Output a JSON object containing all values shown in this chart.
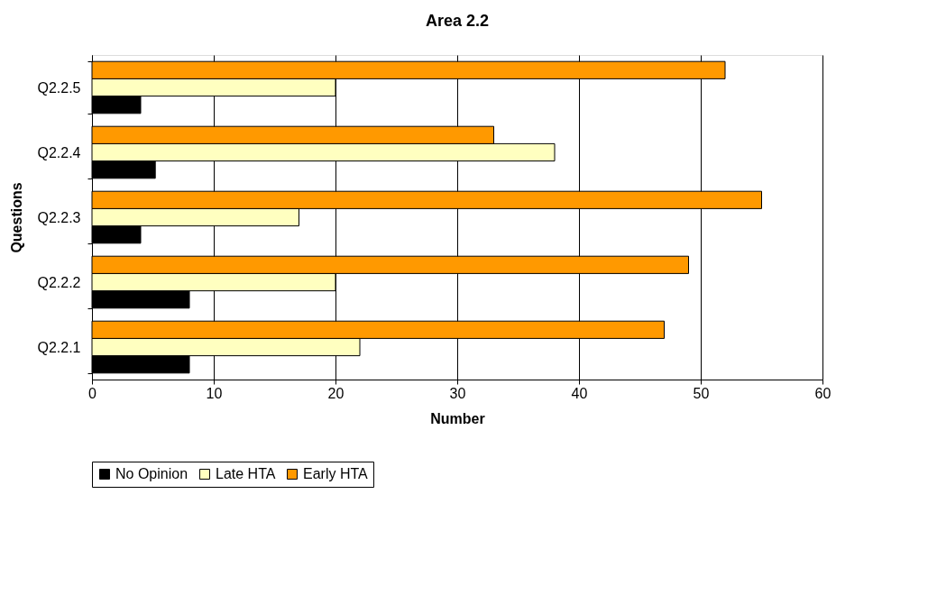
{
  "chart_data": {
    "type": "bar",
    "orientation": "horizontal",
    "title": "Area 2.2",
    "xlabel": "Number",
    "ylabel": "Questions",
    "categories": [
      "Q2.2.5",
      "Q2.2.4",
      "Q2.2.3",
      "Q2.2.2",
      "Q2.2.1"
    ],
    "series": [
      {
        "name": "No Opinion",
        "color": "#000000",
        "values": [
          4,
          5.2,
          4,
          8,
          8
        ]
      },
      {
        "name": "Late HTA",
        "color": "#ffffc0",
        "values": [
          20,
          38,
          17,
          20,
          22
        ]
      },
      {
        "name": "Early HTA",
        "color": "#ff9900",
        "values": [
          52,
          33,
          55,
          49,
          47
        ]
      }
    ],
    "xlim": [
      0,
      60
    ],
    "xticks": [
      0,
      10,
      20,
      30,
      40,
      50,
      60
    ],
    "grid": "x",
    "legend": "bottom"
  }
}
